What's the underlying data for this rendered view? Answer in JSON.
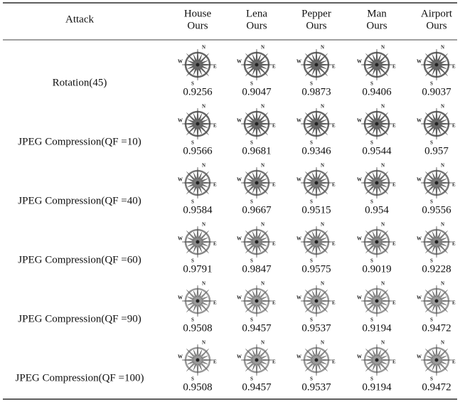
{
  "table": {
    "header": [
      {
        "image": "Attack"
      },
      {
        "image": "House",
        "method": "Ours"
      },
      {
        "image": "Lena",
        "method": "Ours"
      },
      {
        "image": "Pepper",
        "method": "Ours"
      },
      {
        "image": "Man",
        "method": "Ours"
      },
      {
        "image": "Airport",
        "method": "Ours"
      }
    ],
    "rows": [
      [
        "Rotation(45)",
        "0.9256",
        "0.9047",
        "0.9873",
        "0.9406",
        "0.9037"
      ],
      [
        "JPEG Compression(QF =10)",
        "0.9566",
        "0.9681",
        "0.9346",
        "0.9544",
        "0.957"
      ],
      [
        "JPEG Compression(QF =40)",
        "0.9584",
        "0.9667",
        "0.9515",
        "0.954",
        "0.9556"
      ],
      [
        "JPEG Compression(QF =60)",
        "0.9791",
        "0.9847",
        "0.9575",
        "0.9019",
        "0.9228"
      ],
      [
        "JPEG Compression(QF =90)",
        "0.9508",
        "0.9457",
        "0.9537",
        "0.9194",
        "0.9472"
      ],
      [
        "JPEG Compression(QF =100)",
        "0.9508",
        "0.9457",
        "0.9537",
        "0.9194",
        "0.9472"
      ]
    ]
  },
  "watermark": {
    "n": "N",
    "e": "E",
    "s": "S",
    "w": "W"
  }
}
